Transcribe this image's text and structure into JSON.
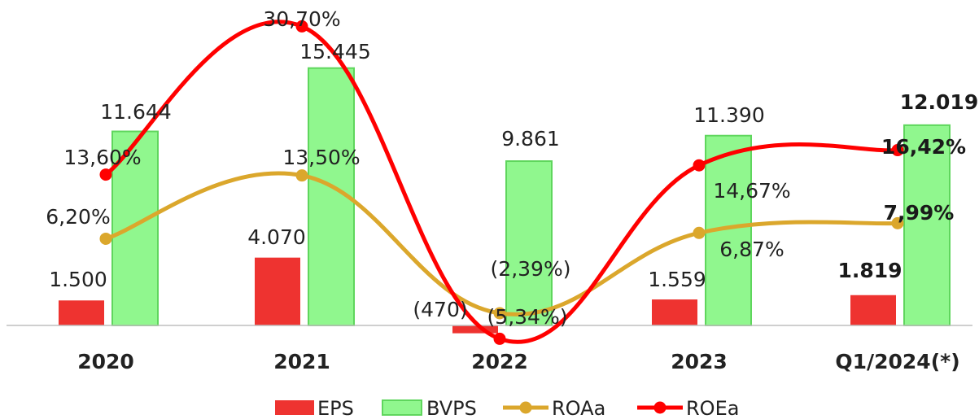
{
  "chart_data": {
    "type": "bar",
    "categories": [
      "2020",
      "2021",
      "2022",
      "2023",
      "Q1/2024(*)"
    ],
    "bars": [
      {
        "name": "EPS",
        "color": "#ee3330",
        "values": [
          1500,
          4070,
          -470,
          1559,
          1819
        ],
        "labels": [
          "1.500",
          "4.070",
          "(470)",
          "1.559",
          "1.819"
        ]
      },
      {
        "name": "BVPS",
        "color": "#90f78e",
        "stroke": "#5fd65d",
        "values": [
          11644,
          15445,
          9861,
          11390,
          12019
        ],
        "labels": [
          "11.644",
          "15.445",
          "9.861",
          "11.390",
          "12.019"
        ]
      }
    ],
    "lines": [
      {
        "name": "ROAa",
        "color": "#dba72c",
        "values": [
          6.2,
          13.5,
          -2.39,
          6.87,
          7.99
        ],
        "labels": [
          "6,20%",
          "13,50%",
          "(2,39%)",
          "6,87%",
          "7,99%"
        ]
      },
      {
        "name": "ROEa",
        "color": "#ff0000",
        "values": [
          13.6,
          30.7,
          -5.34,
          14.67,
          16.42
        ],
        "labels": [
          "13,60%",
          "30,70%",
          "(5,34%)",
          "14,67%",
          "16,42%"
        ]
      }
    ],
    "bold_category_index": 4,
    "legend_position": "bottom",
    "grid": false
  }
}
